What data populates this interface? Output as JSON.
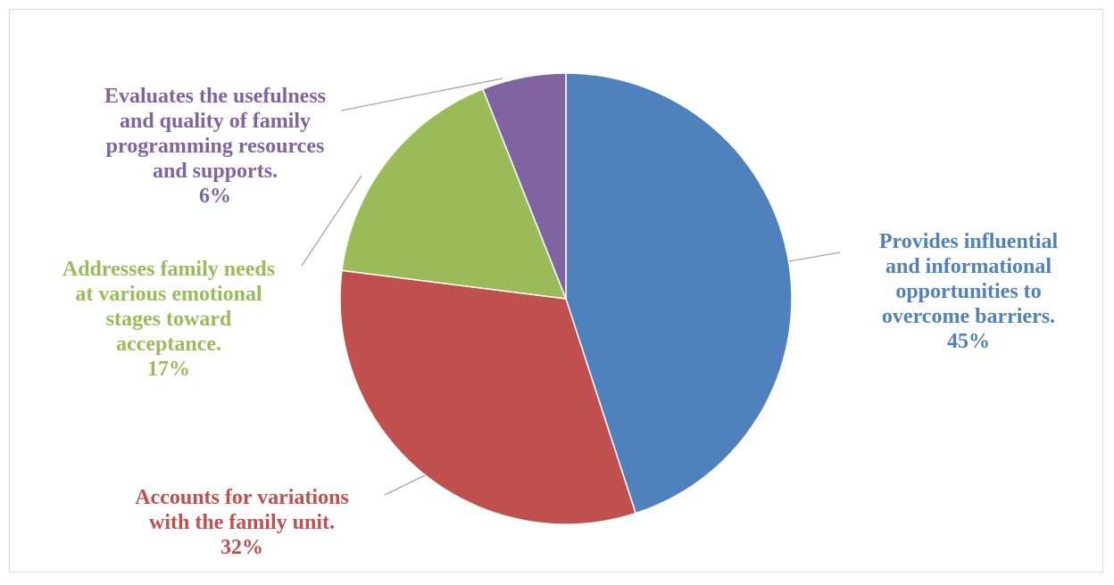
{
  "chart_data": {
    "type": "pie",
    "start_angle_deg": 0,
    "direction": "clockwise",
    "slices": [
      {
        "label": "Provides influential\nand informational\nopportunities to\novercome barriers.",
        "percent_label": "45%",
        "value": 45,
        "color": "#4F81BD"
      },
      {
        "label": "Accounts for variations\nwith the family unit.",
        "percent_label": "32%",
        "value": 32,
        "color": "#C0504D"
      },
      {
        "label": "Addresses family needs\nat various emotional\nstages toward\nacceptance.",
        "percent_label": "17%",
        "value": 17,
        "color": "#9BBB59"
      },
      {
        "label": "Evaluates the usefulness\nand quality of family\nprogramming resources\nand supports.",
        "percent_label": "6%",
        "value": 6,
        "color": "#8064A2"
      }
    ],
    "legend": "none",
    "leader_line_color": "#a6a6a6"
  }
}
